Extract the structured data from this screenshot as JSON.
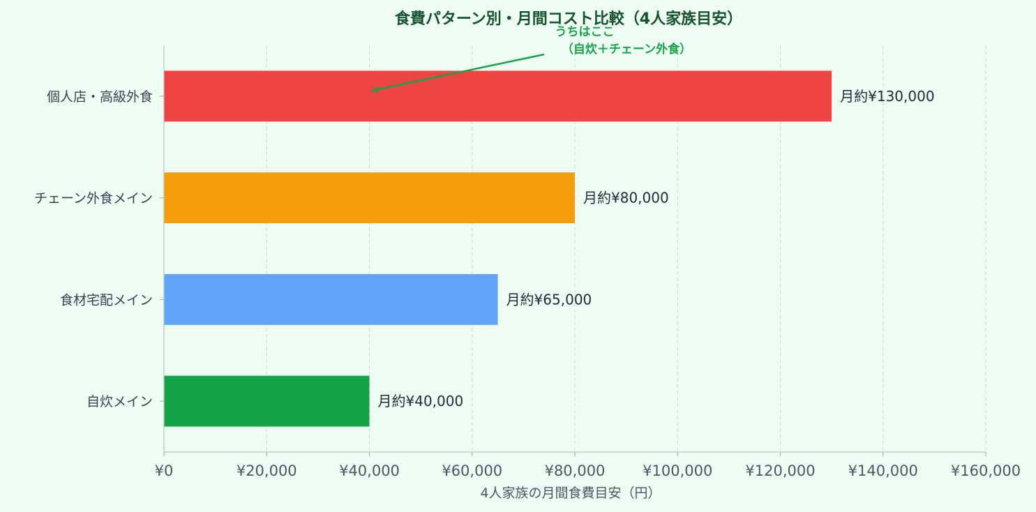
{
  "chart_data": {
    "type": "bar",
    "orientation": "horizontal",
    "title": "食費パターン別・月間コスト比較（4人家族目安）",
    "xlabel": "4人家族の月間食費目安（円）",
    "ylabel": "",
    "xlim": [
      0,
      160000
    ],
    "xticks": [
      0,
      20000,
      40000,
      60000,
      80000,
      100000,
      120000,
      140000,
      160000
    ],
    "xtick_labels": [
      "¥0",
      "¥20,000",
      "¥40,000",
      "¥60,000",
      "¥80,000",
      "¥100,000",
      "¥120,000",
      "¥140,000",
      "¥160,000"
    ],
    "grid": "vertical dashed",
    "categories": [
      "個人店・高級外食",
      "チェーン外食メイン",
      "食材宅配メイン",
      "自炊メイン"
    ],
    "values": [
      130000,
      80000,
      65000,
      40000
    ],
    "data_labels": [
      "月約¥130,000",
      "月約¥80,000",
      "月約¥65,000",
      "月約¥40,000"
    ],
    "colors": [
      "#ef4444",
      "#f59e0b",
      "#60a5fa",
      "#16a34a"
    ],
    "annotation": {
      "lines": [
        "うちはここ",
        "（自炊＋チェーン外食）"
      ],
      "target_x": 40000,
      "target_category": "個人店・高級外食",
      "color": "#16a34a"
    }
  }
}
